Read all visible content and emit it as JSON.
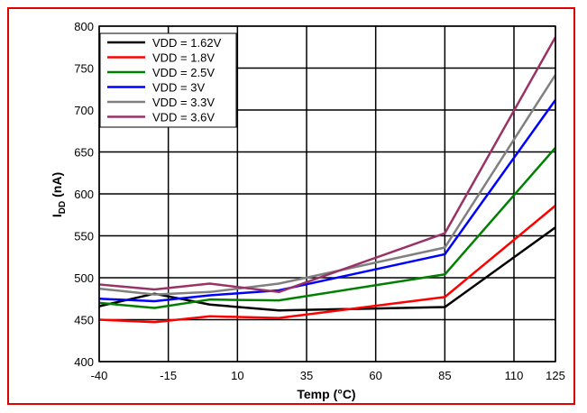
{
  "chart_data": {
    "type": "line",
    "xlabel": "Temp (°C)",
    "ylabel_main": "I",
    "ylabel_sub": "DD",
    "ylabel_suffix": " (nA)",
    "xlim": [
      -40,
      125
    ],
    "ylim": [
      400,
      800
    ],
    "xticks": [
      -40,
      -15,
      10,
      35,
      60,
      85,
      110,
      125
    ],
    "yticks": [
      400,
      450,
      500,
      550,
      600,
      650,
      700,
      750,
      800
    ],
    "grid": true,
    "legend_position": "top-left",
    "x": [
      -40,
      -20,
      0,
      25,
      85,
      125
    ],
    "series": [
      {
        "name": "VDD = 1.62V",
        "color": "#000000",
        "values": [
          466,
          481,
          468,
          461,
          465,
          560
        ]
      },
      {
        "name": "VDD = 1.8V",
        "color": "#ff0000",
        "values": [
          450,
          447,
          454,
          452,
          477,
          586
        ]
      },
      {
        "name": "VDD = 2.5V",
        "color": "#008000",
        "values": [
          470,
          464,
          474,
          473,
          504,
          655
        ]
      },
      {
        "name": "VDD = 3V",
        "color": "#0000ff",
        "values": [
          475,
          472,
          479,
          485,
          528,
          712
        ]
      },
      {
        "name": "VDD = 3.3V",
        "color": "#808080",
        "values": [
          487,
          480,
          483,
          493,
          536,
          742
        ]
      },
      {
        "name": "VDD = 3.6V",
        "color": "#993366",
        "values": [
          492,
          486,
          493,
          483,
          553,
          787
        ]
      }
    ]
  }
}
